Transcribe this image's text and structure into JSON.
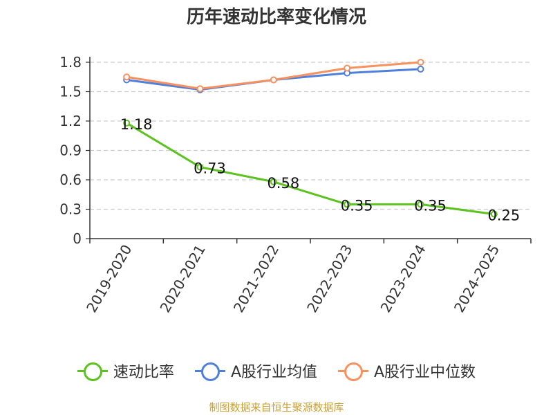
{
  "chart_data": {
    "type": "line",
    "title": "历年速动比率变化情况",
    "categories": [
      "2019-2020",
      "2020-2021",
      "2021-2022",
      "2022-2023",
      "2023-2024",
      "2024-2025"
    ],
    "y_ticks": [
      "0",
      "0.3",
      "0.6",
      "0.9",
      "1.2",
      "1.5",
      "1.8"
    ],
    "ylim": [
      0,
      1.8
    ],
    "grid": true,
    "legend_position": "bottom",
    "series": [
      {
        "name": "速动比率",
        "color": "#5bc21e",
        "values": [
          1.18,
          0.73,
          0.58,
          0.35,
          0.35,
          0.25
        ],
        "labels": [
          "1.18",
          "0.73",
          "0.58",
          "0.35",
          "0.35",
          "0.25"
        ],
        "show_labels": true
      },
      {
        "name": "A股行业均值",
        "color": "#4e7fdc",
        "values": [
          1.62,
          1.52,
          1.62,
          1.69,
          1.73,
          null
        ],
        "show_labels": false
      },
      {
        "name": "A股行业中位数",
        "color": "#f7915e",
        "values": [
          1.65,
          1.53,
          1.62,
          1.74,
          1.8,
          null
        ],
        "show_labels": false
      }
    ]
  },
  "source_text": "制图数据来自恒生聚源数据库",
  "colors": {
    "source": "#c8a035",
    "axis": "#333333",
    "grid": "#cccccc"
  }
}
